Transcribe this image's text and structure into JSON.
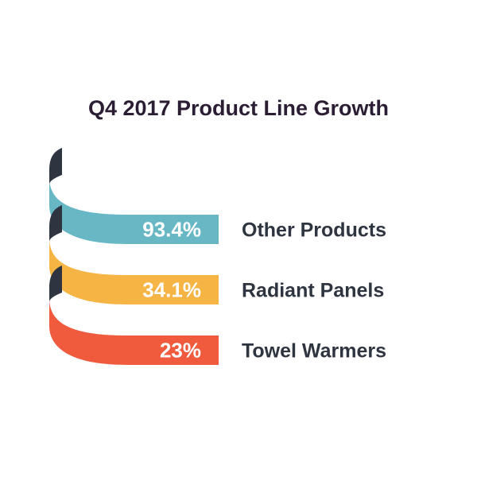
{
  "chart_data": {
    "type": "bar",
    "title": "Q4 2017 Product Line Growth",
    "categories": [
      "Other Products",
      "Radiant Panels",
      "Towel Warmers"
    ],
    "values": [
      93.4,
      34.1,
      23
    ],
    "value_labels": [
      "93.4%",
      "34.1%",
      "23%"
    ],
    "colors": [
      "#67b7c5",
      "#f5b443",
      "#f05b3e"
    ],
    "shadow_color": "#2f3540",
    "unit": "%"
  }
}
